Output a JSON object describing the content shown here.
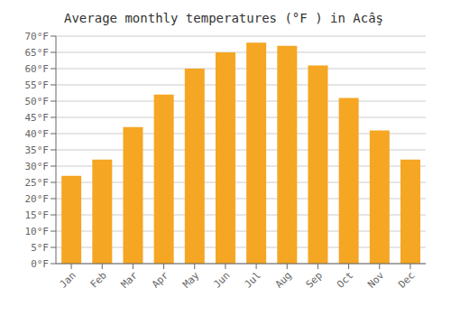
{
  "chart_data": {
    "type": "bar",
    "title": "Average monthly temperatures (°F ) in Acâş",
    "categories": [
      "Jan",
      "Feb",
      "Mar",
      "Apr",
      "May",
      "Jun",
      "Jul",
      "Aug",
      "Sep",
      "Oct",
      "Nov",
      "Dec"
    ],
    "values": [
      27,
      32,
      42,
      52,
      60,
      65,
      68,
      67,
      61,
      51,
      41,
      32
    ],
    "color": "#F5A623",
    "ylim": [
      0,
      70
    ],
    "yticks": [
      {
        "value": 0,
        "label": "0°F"
      },
      {
        "value": 5,
        "label": "5°F"
      },
      {
        "value": 10,
        "label": "10°F"
      },
      {
        "value": 15,
        "label": "15°F"
      },
      {
        "value": 20,
        "label": "20°F"
      },
      {
        "value": 25,
        "label": "25°F"
      },
      {
        "value": 30,
        "label": "30°F"
      },
      {
        "value": 35,
        "label": "35°F"
      },
      {
        "value": 40,
        "label": "40°F"
      },
      {
        "value": 45,
        "label": "45°F"
      },
      {
        "value": 50,
        "label": "50°F"
      },
      {
        "value": 55,
        "label": "55°F"
      },
      {
        "value": 60,
        "label": "60°F"
      },
      {
        "value": 65,
        "label": "65°F"
      },
      {
        "value": 70,
        "label": "70°F"
      }
    ],
    "grid": true
  }
}
